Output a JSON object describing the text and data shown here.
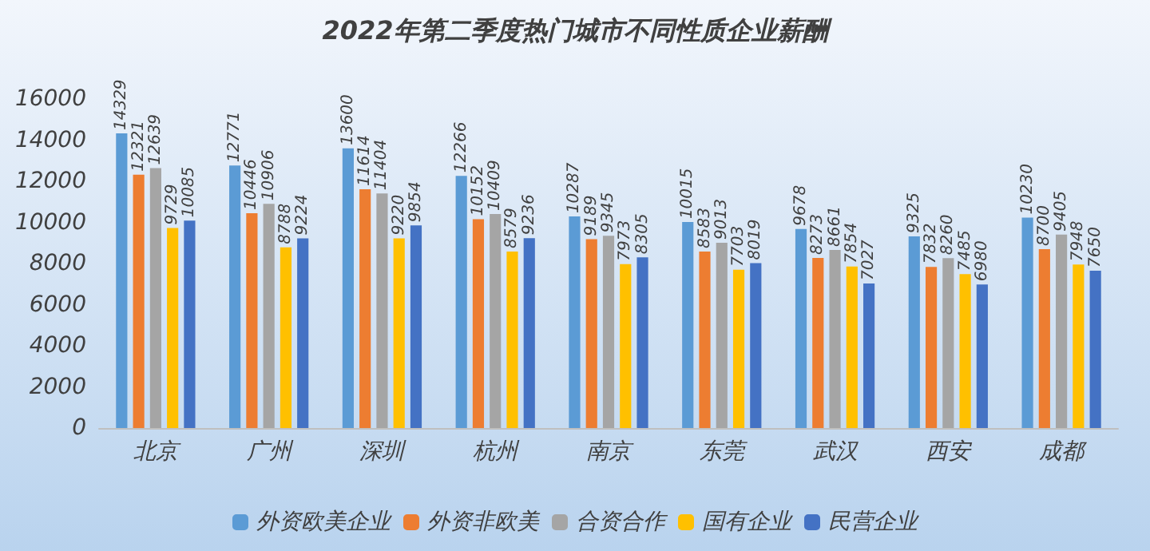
{
  "chart_data": {
    "type": "bar",
    "title": "2022年第二季度热门城市不同性质企业薪酬",
    "categories": [
      "北京",
      "广州",
      "深圳",
      "杭州",
      "南京",
      "东莞",
      "武汉",
      "西安",
      "成都"
    ],
    "series": [
      {
        "name": "外资欧美企业",
        "color": "#5b9bd5",
        "values": [
          14329,
          12771,
          13600,
          12266,
          10287,
          10015,
          9678,
          9325,
          10230
        ]
      },
      {
        "name": "外资非欧美",
        "color": "#ed7d31",
        "values": [
          12321,
          10446,
          11614,
          10152,
          9189,
          8583,
          8273,
          7832,
          8700
        ]
      },
      {
        "name": "合资合作",
        "color": "#a5a5a5",
        "values": [
          12639,
          10906,
          11404,
          10409,
          9345,
          9013,
          8661,
          8260,
          9405
        ]
      },
      {
        "name": "国有企业",
        "color": "#ffc000",
        "values": [
          9729,
          8788,
          9220,
          8579,
          7973,
          7703,
          7854,
          7485,
          7948
        ]
      },
      {
        "name": "民营企业",
        "color": "#4472c4",
        "values": [
          10085,
          9224,
          9854,
          9236,
          8305,
          8019,
          7027,
          6980,
          7650
        ]
      }
    ],
    "ylim": [
      0,
      16000
    ],
    "yticks": [
      0,
      2000,
      4000,
      6000,
      8000,
      10000,
      12000,
      14000,
      16000
    ],
    "grid": false,
    "legend": "bottom",
    "data_labels": true
  }
}
